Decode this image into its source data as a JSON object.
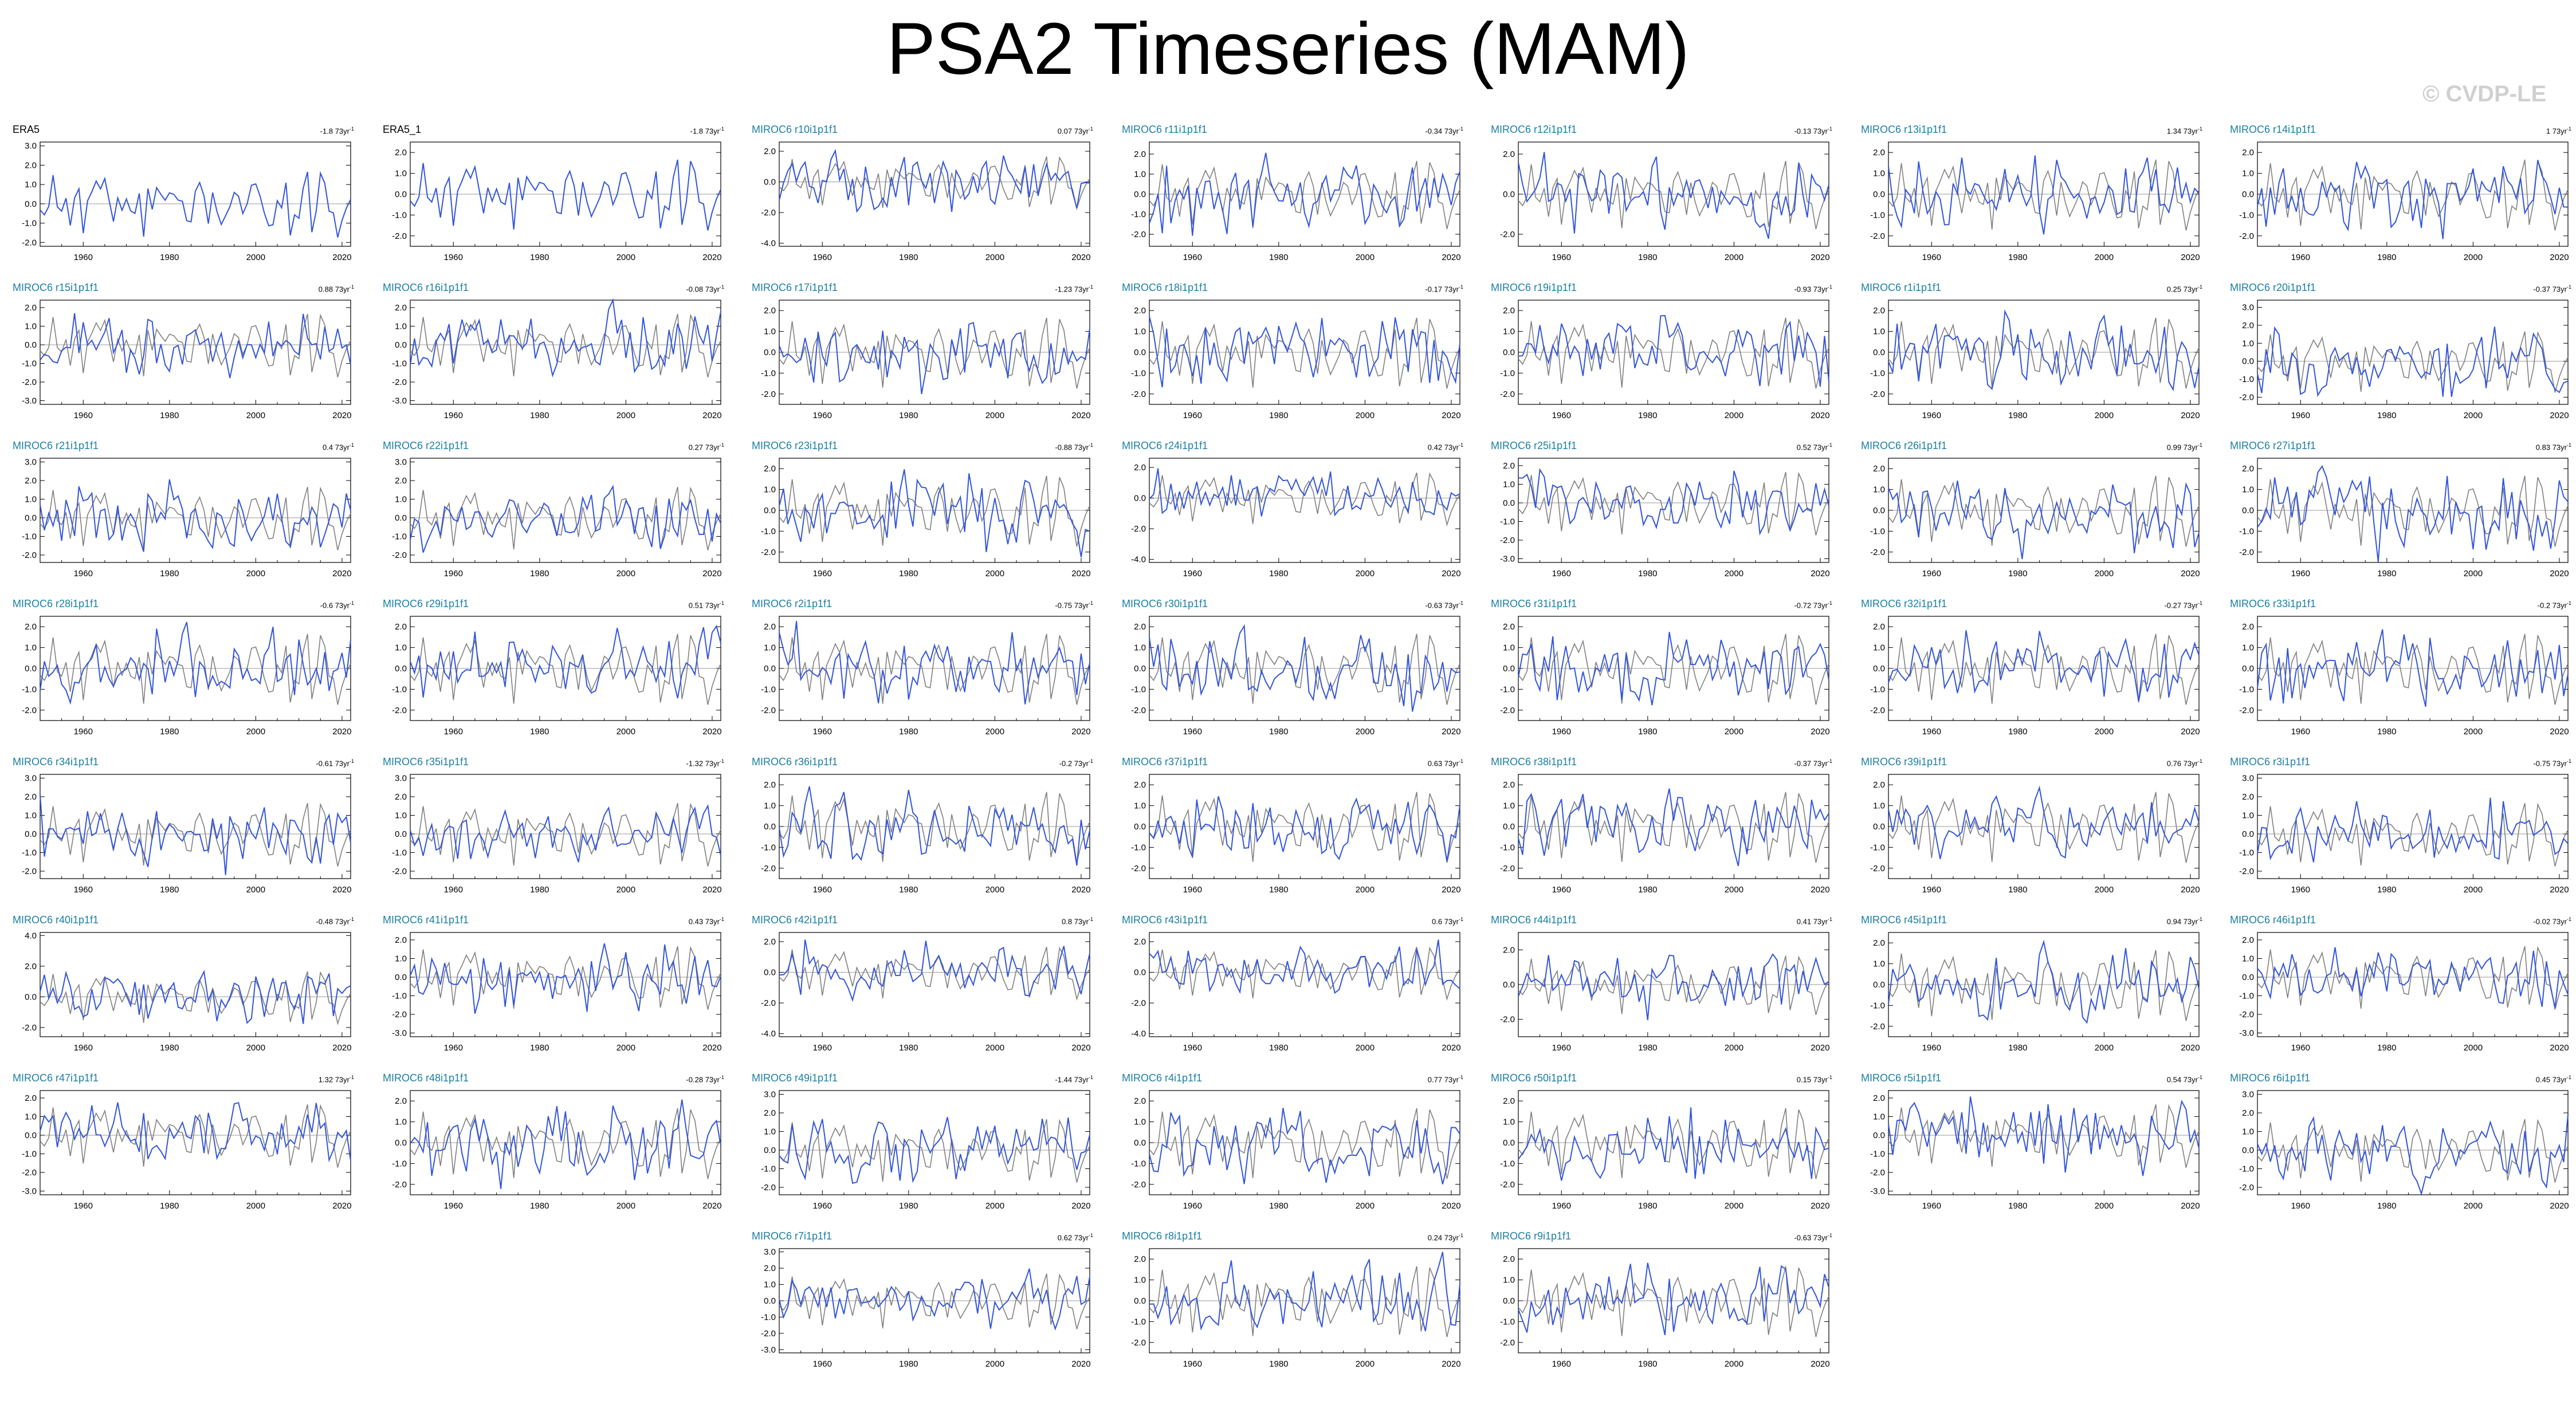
{
  "page": {
    "title": "PSA2 Timeseries (MAM)",
    "watermark": "© CVDP-LE"
  },
  "colors": {
    "ensemble_line": "#3355dd",
    "reference_line": "#808080",
    "obs_line": "#3355dd",
    "member_name": "#1a7fa5",
    "obs_name": "#000000",
    "zero_line": "#9a9a9a"
  },
  "layout_grid": {
    "columns": 7
  },
  "chart_data": {
    "type": "line",
    "x_start": 1950,
    "x_end": 2022,
    "xticks": [
      1960,
      1980,
      2000,
      2020
    ],
    "trend_unit": "73yr",
    "trend_unit_exp": "-1",
    "panels": [
      {
        "name": "ERA5",
        "trend": "-1.8",
        "kind": "obs",
        "yticks": [
          "3.0",
          "2.0",
          "1.0",
          "0.0",
          "-1.0",
          "-2.0"
        ],
        "ylim": [
          -2.2,
          3.2
        ],
        "seed": 11
      },
      {
        "name": "ERA5_1",
        "trend": "-1.8",
        "kind": "obs",
        "yticks": [
          "2.0",
          "1.0",
          "0.0",
          "-1.0",
          "-2.0"
        ],
        "ylim": [
          -2.5,
          2.5
        ],
        "seed": 11
      },
      {
        "name": "MIROC6 r10i1p1f1",
        "trend": "0.07",
        "kind": "member",
        "yticks": [
          "2.0",
          "0.0",
          "-2.0",
          "-4.0"
        ],
        "ylim": [
          -4.2,
          2.6
        ],
        "seed": 21
      },
      {
        "name": "MIROC6 r11i1p1f1",
        "trend": "-0.34",
        "kind": "member",
        "yticks": [
          "2.0",
          "1.0",
          "0.0",
          "-1.0",
          "-2.0"
        ],
        "ylim": [
          -2.6,
          2.6
        ],
        "seed": 22
      },
      {
        "name": "MIROC6 r12i1p1f1",
        "trend": "-0.13",
        "kind": "member",
        "yticks": [
          "2.0",
          "0.0",
          "-2.0"
        ],
        "ylim": [
          -2.6,
          2.6
        ],
        "seed": 23
      },
      {
        "name": "MIROC6 r13i1p1f1",
        "trend": "1.34",
        "kind": "member",
        "yticks": [
          "2.0",
          "1.0",
          "0.0",
          "-1.0",
          "-2.0"
        ],
        "ylim": [
          -2.5,
          2.5
        ],
        "seed": 24
      },
      {
        "name": "MIROC6 r14i1p1f1",
        "trend": "1",
        "kind": "member",
        "yticks": [
          "2.0",
          "1.0",
          "0.0",
          "-1.0",
          "-2.0"
        ],
        "ylim": [
          -2.5,
          2.5
        ],
        "seed": 25
      },
      {
        "name": "MIROC6 r15i1p1f1",
        "trend": "0.88",
        "kind": "member",
        "yticks": [
          "2.0",
          "1.0",
          "0.0",
          "-1.0",
          "-2.0",
          "-3.0"
        ],
        "ylim": [
          -3.2,
          2.4
        ],
        "seed": 26
      },
      {
        "name": "MIROC6 r16i1p1f1",
        "trend": "-0.08",
        "kind": "member",
        "yticks": [
          "2.0",
          "1.0",
          "0.0",
          "-1.0",
          "-2.0",
          "-3.0"
        ],
        "ylim": [
          -3.2,
          2.4
        ],
        "seed": 27
      },
      {
        "name": "MIROC6 r17i1p1f1",
        "trend": "-1.23",
        "kind": "member",
        "yticks": [
          "2.0",
          "1.0",
          "0.0",
          "-1.0",
          "-2.0"
        ],
        "ylim": [
          -2.5,
          2.5
        ],
        "seed": 28
      },
      {
        "name": "MIROC6 r18i1p1f1",
        "trend": "-0.17",
        "kind": "member",
        "yticks": [
          "2.0",
          "1.0",
          "0.0",
          "-1.0",
          "-2.0"
        ],
        "ylim": [
          -2.5,
          2.5
        ],
        "seed": 29
      },
      {
        "name": "MIROC6 r19i1p1f1",
        "trend": "-0.93",
        "kind": "member",
        "yticks": [
          "2.0",
          "1.0",
          "0.0",
          "-1.0",
          "-2.0"
        ],
        "ylim": [
          -2.5,
          2.5
        ],
        "seed": 30
      },
      {
        "name": "MIROC6 r1i1p1f1",
        "trend": "0.25",
        "kind": "member",
        "yticks": [
          "2.0",
          "1.0",
          "0.0",
          "-1.0",
          "-2.0"
        ],
        "ylim": [
          -2.5,
          2.5
        ],
        "seed": 31
      },
      {
        "name": "MIROC6 r20i1p1f1",
        "trend": "-0.37",
        "kind": "member",
        "yticks": [
          "3.0",
          "2.0",
          "1.0",
          "0.0",
          "-1.0",
          "-2.0"
        ],
        "ylim": [
          -2.4,
          3.4
        ],
        "seed": 32
      },
      {
        "name": "MIROC6 r21i1p1f1",
        "trend": "0.4",
        "kind": "member",
        "yticks": [
          "3.0",
          "2.0",
          "1.0",
          "0.0",
          "-1.0",
          "-2.0"
        ],
        "ylim": [
          -2.4,
          3.2
        ],
        "seed": 33
      },
      {
        "name": "MIROC6 r22i1p1f1",
        "trend": "0.27",
        "kind": "member",
        "yticks": [
          "3.0",
          "2.0",
          "1.0",
          "0.0",
          "-1.0",
          "-2.0"
        ],
        "ylim": [
          -2.4,
          3.2
        ],
        "seed": 34
      },
      {
        "name": "MIROC6 r23i1p1f1",
        "trend": "-0.88",
        "kind": "member",
        "yticks": [
          "2.0",
          "1.0",
          "0.0",
          "-1.0",
          "-2.0"
        ],
        "ylim": [
          -2.5,
          2.5
        ],
        "seed": 35
      },
      {
        "name": "MIROC6 r24i1p1f1",
        "trend": "0.42",
        "kind": "member",
        "yticks": [
          "2.0",
          "0.0",
          "-2.0",
          "-4.0"
        ],
        "ylim": [
          -4.2,
          2.6
        ],
        "seed": 36
      },
      {
        "name": "MIROC6 r25i1p1f1",
        "trend": "0.52",
        "kind": "member",
        "yticks": [
          "2.0",
          "1.0",
          "0.0",
          "-1.0",
          "-2.0",
          "-3.0"
        ],
        "ylim": [
          -3.2,
          2.4
        ],
        "seed": 37
      },
      {
        "name": "MIROC6 r26i1p1f1",
        "trend": "0.99",
        "kind": "member",
        "yticks": [
          "2.0",
          "1.0",
          "0.0",
          "-1.0",
          "-2.0"
        ],
        "ylim": [
          -2.5,
          2.5
        ],
        "seed": 38
      },
      {
        "name": "MIROC6 r27i1p1f1",
        "trend": "0.83",
        "kind": "member",
        "yticks": [
          "2.0",
          "1.0",
          "0.0",
          "-1.0",
          "-2.0"
        ],
        "ylim": [
          -2.5,
          2.5
        ],
        "seed": 39
      },
      {
        "name": "MIROC6 r28i1p1f1",
        "trend": "-0.6",
        "kind": "member",
        "yticks": [
          "2.0",
          "1.0",
          "0.0",
          "-1.0",
          "-2.0"
        ],
        "ylim": [
          -2.5,
          2.5
        ],
        "seed": 40
      },
      {
        "name": "MIROC6 r29i1p1f1",
        "trend": "0.51",
        "kind": "member",
        "yticks": [
          "2.0",
          "1.0",
          "0.0",
          "-1.0",
          "-2.0"
        ],
        "ylim": [
          -2.5,
          2.5
        ],
        "seed": 41
      },
      {
        "name": "MIROC6 r2i1p1f1",
        "trend": "-0.75",
        "kind": "member",
        "yticks": [
          "2.0",
          "1.0",
          "0.0",
          "-1.0",
          "-2.0"
        ],
        "ylim": [
          -2.5,
          2.5
        ],
        "seed": 42
      },
      {
        "name": "MIROC6 r30i1p1f1",
        "trend": "-0.63",
        "kind": "member",
        "yticks": [
          "2.0",
          "1.0",
          "0.0",
          "-1.0",
          "-2.0"
        ],
        "ylim": [
          -2.5,
          2.5
        ],
        "seed": 43
      },
      {
        "name": "MIROC6 r31i1p1f1",
        "trend": "-0.72",
        "kind": "member",
        "yticks": [
          "2.0",
          "1.0",
          "0.0",
          "-1.0",
          "-2.0"
        ],
        "ylim": [
          -2.5,
          2.5
        ],
        "seed": 44
      },
      {
        "name": "MIROC6 r32i1p1f1",
        "trend": "-0.27",
        "kind": "member",
        "yticks": [
          "2.0",
          "1.0",
          "0.0",
          "-1.0",
          "-2.0"
        ],
        "ylim": [
          -2.5,
          2.5
        ],
        "seed": 45
      },
      {
        "name": "MIROC6 r33i1p1f1",
        "trend": "-0.2",
        "kind": "member",
        "yticks": [
          "2.0",
          "1.0",
          "0.0",
          "-1.0",
          "-2.0"
        ],
        "ylim": [
          -2.5,
          2.5
        ],
        "seed": 46
      },
      {
        "name": "MIROC6 r34i1p1f1",
        "trend": "-0.61",
        "kind": "member",
        "yticks": [
          "3.0",
          "2.0",
          "1.0",
          "0.0",
          "-1.0",
          "-2.0"
        ],
        "ylim": [
          -2.4,
          3.2
        ],
        "seed": 47
      },
      {
        "name": "MIROC6 r35i1p1f1",
        "trend": "-1.32",
        "kind": "member",
        "yticks": [
          "3.0",
          "2.0",
          "1.0",
          "0.0",
          "-1.0",
          "-2.0"
        ],
        "ylim": [
          -2.4,
          3.2
        ],
        "seed": 48
      },
      {
        "name": "MIROC6 r36i1p1f1",
        "trend": "-0.2",
        "kind": "member",
        "yticks": [
          "2.0",
          "1.0",
          "0.0",
          "-1.0",
          "-2.0"
        ],
        "ylim": [
          -2.5,
          2.5
        ],
        "seed": 49
      },
      {
        "name": "MIROC6 r37i1p1f1",
        "trend": "0.63",
        "kind": "member",
        "yticks": [
          "2.0",
          "1.0",
          "0.0",
          "-1.0",
          "-2.0"
        ],
        "ylim": [
          -2.5,
          2.5
        ],
        "seed": 50
      },
      {
        "name": "MIROC6 r38i1p1f1",
        "trend": "-0.37",
        "kind": "member",
        "yticks": [
          "2.0",
          "1.0",
          "0.0",
          "-1.0",
          "-2.0"
        ],
        "ylim": [
          -2.5,
          2.5
        ],
        "seed": 51
      },
      {
        "name": "MIROC6 r39i1p1f1",
        "trend": "0.76",
        "kind": "member",
        "yticks": [
          "2.0",
          "1.0",
          "0.0",
          "-1.0",
          "-2.0"
        ],
        "ylim": [
          -2.5,
          2.5
        ],
        "seed": 52
      },
      {
        "name": "MIROC6 r3i1p1f1",
        "trend": "-0.75",
        "kind": "member",
        "yticks": [
          "3.0",
          "2.0",
          "1.0",
          "0.0",
          "-1.0",
          "-2.0"
        ],
        "ylim": [
          -2.4,
          3.2
        ],
        "seed": 53
      },
      {
        "name": "MIROC6 r40i1p1f1",
        "trend": "-0.48",
        "kind": "member",
        "yticks": [
          "4.0",
          "2.0",
          "0.0",
          "-2.0"
        ],
        "ylim": [
          -2.6,
          4.2
        ],
        "seed": 54
      },
      {
        "name": "MIROC6 r41i1p1f1",
        "trend": "0.43",
        "kind": "member",
        "yticks": [
          "2.0",
          "1.0",
          "0.0",
          "-1.0",
          "-2.0",
          "-3.0"
        ],
        "ylim": [
          -3.2,
          2.4
        ],
        "seed": 55
      },
      {
        "name": "MIROC6 r42i1p1f1",
        "trend": "0.8",
        "kind": "member",
        "yticks": [
          "2.0",
          "0.0",
          "-2.0",
          "-4.0"
        ],
        "ylim": [
          -4.2,
          2.6
        ],
        "seed": 56
      },
      {
        "name": "MIROC6 r43i1p1f1",
        "trend": "0.6",
        "kind": "member",
        "yticks": [
          "2.0",
          "0.0",
          "-2.0",
          "-4.0"
        ],
        "ylim": [
          -4.2,
          2.6
        ],
        "seed": 57
      },
      {
        "name": "MIROC6 r44i1p1f1",
        "trend": "0.41",
        "kind": "member",
        "yticks": [
          "2.0",
          "0.0",
          "-2.0"
        ],
        "ylim": [
          -3.0,
          3.0
        ],
        "seed": 58
      },
      {
        "name": "MIROC6 r45i1p1f1",
        "trend": "0.94",
        "kind": "member",
        "yticks": [
          "2.0",
          "1.0",
          "0.0",
          "-1.0",
          "-2.0"
        ],
        "ylim": [
          -2.5,
          2.5
        ],
        "seed": 59
      },
      {
        "name": "MIROC6 r46i1p1f1",
        "trend": "-0.02",
        "kind": "member",
        "yticks": [
          "2.0",
          "1.0",
          "0.0",
          "-1.0",
          "-2.0",
          "-3.0"
        ],
        "ylim": [
          -3.2,
          2.4
        ],
        "seed": 60
      },
      {
        "name": "MIROC6 r47i1p1f1",
        "trend": "1.32",
        "kind": "member",
        "yticks": [
          "2.0",
          "1.0",
          "0.0",
          "-1.0",
          "-2.0",
          "-3.0"
        ],
        "ylim": [
          -3.2,
          2.4
        ],
        "seed": 61
      },
      {
        "name": "MIROC6 r48i1p1f1",
        "trend": "-0.28",
        "kind": "member",
        "yticks": [
          "2.0",
          "1.0",
          "0.0",
          "-1.0",
          "-2.0"
        ],
        "ylim": [
          -2.5,
          2.5
        ],
        "seed": 62
      },
      {
        "name": "MIROC6 r49i1p1f1",
        "trend": "-1.44",
        "kind": "member",
        "yticks": [
          "3.0",
          "2.0",
          "1.0",
          "0.0",
          "-1.0",
          "-2.0"
        ],
        "ylim": [
          -2.4,
          3.2
        ],
        "seed": 63
      },
      {
        "name": "MIROC6 r4i1p1f1",
        "trend": "0.77",
        "kind": "member",
        "yticks": [
          "2.0",
          "1.0",
          "0.0",
          "-1.0",
          "-2.0"
        ],
        "ylim": [
          -2.5,
          2.5
        ],
        "seed": 64
      },
      {
        "name": "MIROC6 r50i1p1f1",
        "trend": "0.15",
        "kind": "member",
        "yticks": [
          "2.0",
          "1.0",
          "0.0",
          "-1.0",
          "-2.0"
        ],
        "ylim": [
          -2.5,
          2.5
        ],
        "seed": 65
      },
      {
        "name": "MIROC6 r5i1p1f1",
        "trend": "0.54",
        "kind": "member",
        "yticks": [
          "2.0",
          "1.0",
          "0.0",
          "-1.0",
          "-2.0",
          "-3.0"
        ],
        "ylim": [
          -3.2,
          2.4
        ],
        "seed": 66
      },
      {
        "name": "MIROC6 r6i1p1f1",
        "trend": "0.45",
        "kind": "member",
        "yticks": [
          "3.0",
          "2.0",
          "1.0",
          "0.0",
          "-1.0",
          "-2.0"
        ],
        "ylim": [
          -2.4,
          3.2
        ],
        "seed": 67
      },
      {
        "name": "MIROC6 r7i1p1f1",
        "trend": "0.62",
        "kind": "member",
        "yticks": [
          "3.0",
          "2.0",
          "1.0",
          "0.0",
          "-1.0",
          "-2.0",
          "-3.0"
        ],
        "ylim": [
          -3.2,
          3.2
        ],
        "seed": 68
      },
      {
        "name": "MIROC6 r8i1p1f1",
        "trend": "0.24",
        "kind": "member",
        "yticks": [
          "2.0",
          "1.0",
          "0.0",
          "-1.0",
          "-2.0"
        ],
        "ylim": [
          -2.5,
          2.5
        ],
        "seed": 69
      },
      {
        "name": "MIROC6 r9i1p1f1",
        "trend": "-0.63",
        "kind": "member",
        "yticks": [
          "2.0",
          "1.0",
          "0.0",
          "-1.0",
          "-2.0"
        ],
        "ylim": [
          -2.5,
          2.5
        ],
        "seed": 70
      }
    ]
  }
}
